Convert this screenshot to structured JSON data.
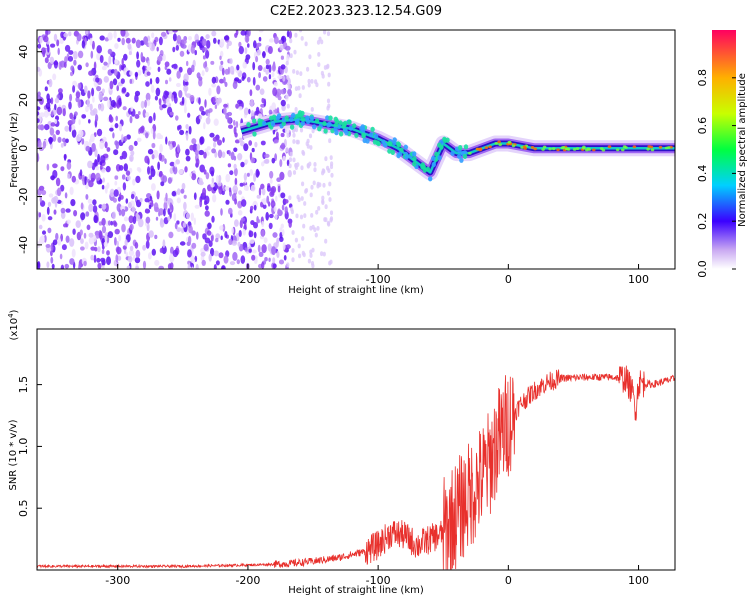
{
  "title": "C2E2.2023.323.12.54.G09",
  "chart_data": [
    {
      "type": "heatmap",
      "xlabel": "Height of straight line (km)",
      "ylabel": "Frequency (Hz)",
      "xlim": [
        -362,
        128
      ],
      "ylim": [
        -50,
        49
      ],
      "xticks": [
        -300,
        -200,
        -100,
        0,
        100
      ],
      "xtick_labels": [
        "-300",
        "-200",
        "-100",
        "0",
        "100"
      ],
      "yticks": [
        -40,
        -20,
        0,
        20,
        40
      ],
      "ytick_labels": [
        "-40",
        "-20",
        "0",
        "20",
        "40"
      ],
      "colorbar": {
        "label": "Normalized spectral amplitude",
        "range": [
          0,
          1
        ],
        "ticks": [
          0,
          0.2,
          0.4,
          0.6,
          0.8
        ],
        "tick_labels": [
          "0.0",
          "0.2",
          "0.4",
          "0.6",
          "0.8"
        ]
      },
      "ridge": {
        "x": [
          -205,
          -180,
          -160,
          -140,
          -120,
          -100,
          -85,
          -70,
          -60,
          -50,
          -40,
          -30,
          -20,
          -10,
          0,
          20,
          60,
          100,
          128
        ],
        "y": [
          7,
          11,
          12,
          10,
          8,
          4,
          0,
          -6,
          -10,
          2,
          -2,
          -2,
          0,
          2,
          2,
          0,
          0,
          0,
          0
        ]
      }
    },
    {
      "type": "line",
      "xlabel": "Height of straight line (km)",
      "ylabel": "SNR (10 * v/v)",
      "scale_label": "(x10",
      "scale_exponent": "4",
      "scale_suffix": ")",
      "xlim": [
        -362,
        128
      ],
      "ylim": [
        0,
        1.95
      ],
      "xticks": [
        -300,
        -200,
        -100,
        0,
        100
      ],
      "xtick_labels": [
        "-300",
        "-200",
        "-100",
        "0",
        "100"
      ],
      "yticks": [
        0.5,
        1.0,
        1.5
      ],
      "ytick_labels": [
        "0.5",
        "1.0",
        "1.5"
      ],
      "color": "#e8302c",
      "series": [
        {
          "x": [
            -362,
            -300,
            -250,
            -200,
            -170,
            -150,
            -130,
            -110,
            -100,
            -90,
            -80,
            -70,
            -60,
            -50,
            -40,
            -30,
            -20,
            -15,
            -10,
            0,
            10,
            20,
            30,
            40,
            60,
            80,
            90,
            95,
            98,
            100,
            110,
            128
          ],
          "y": [
            0.03,
            0.03,
            0.03,
            0.04,
            0.05,
            0.07,
            0.1,
            0.15,
            0.2,
            0.3,
            0.28,
            0.2,
            0.25,
            0.3,
            0.45,
            0.6,
            0.75,
            0.85,
            1.0,
            1.2,
            1.35,
            1.45,
            1.52,
            1.55,
            1.56,
            1.56,
            1.55,
            1.45,
            1.3,
            1.52,
            1.5,
            1.55
          ]
        }
      ]
    }
  ]
}
